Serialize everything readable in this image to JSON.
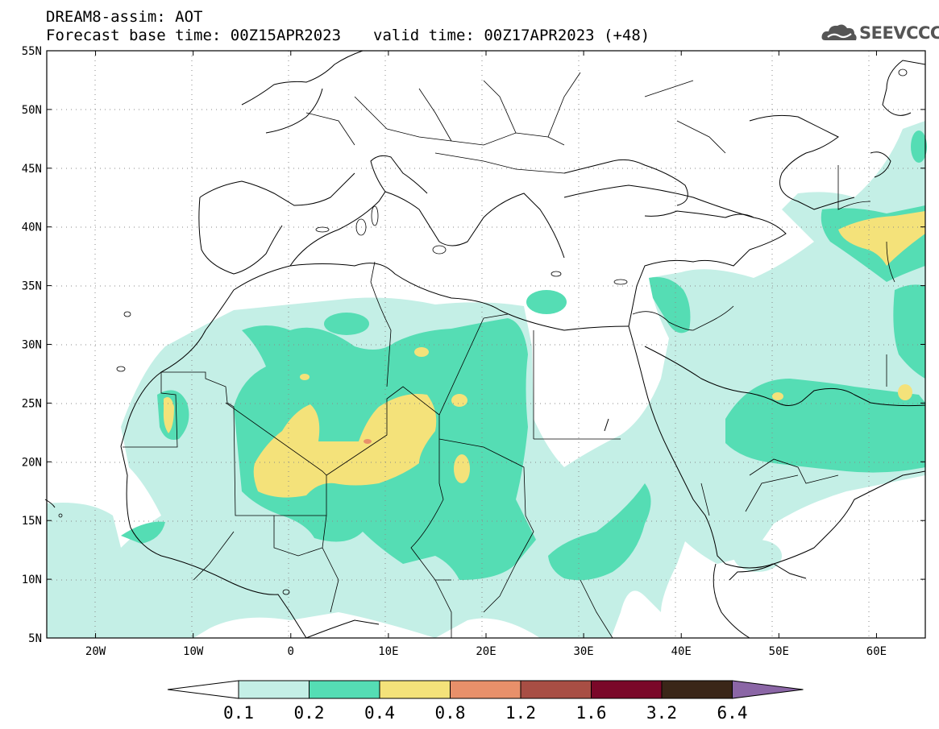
{
  "header": {
    "line1": "DREAM8-assim: AOT",
    "base_time": "Forecast base time: 00Z15APR2023",
    "valid_time": "valid time: 00Z17APR2023 (+48)"
  },
  "logo": {
    "text": "SEEVCCC",
    "icon": "cloud-icon"
  },
  "map": {
    "lon_range": [
      -25,
      65
    ],
    "lat_range": [
      5,
      55
    ],
    "lat_ticks": [
      "55N",
      "50N",
      "45N",
      "40N",
      "35N",
      "30N",
      "25N",
      "20N",
      "15N",
      "10N",
      "5N"
    ],
    "lon_ticks": [
      "20W",
      "10W",
      "0",
      "10E",
      "20E",
      "30E",
      "40E",
      "50E",
      "60E"
    ],
    "grid": "dotted"
  },
  "colorbar": {
    "labels": [
      "0.1",
      "0.2",
      "0.4",
      "0.8",
      "1.2",
      "1.6",
      "3.2",
      "6.4"
    ],
    "colors": [
      "#ffffff",
      "#c4efe6",
      "#55ddb4",
      "#f4e27a",
      "#e8906a",
      "#a84e44",
      "#7a0829",
      "#3a2618",
      "#8b66a6"
    ]
  },
  "colors": {
    "level1": "#c4efe6",
    "level2": "#55ddb4",
    "level3": "#f4e27a",
    "level4": "#e8906a",
    "frame": "#000000"
  }
}
